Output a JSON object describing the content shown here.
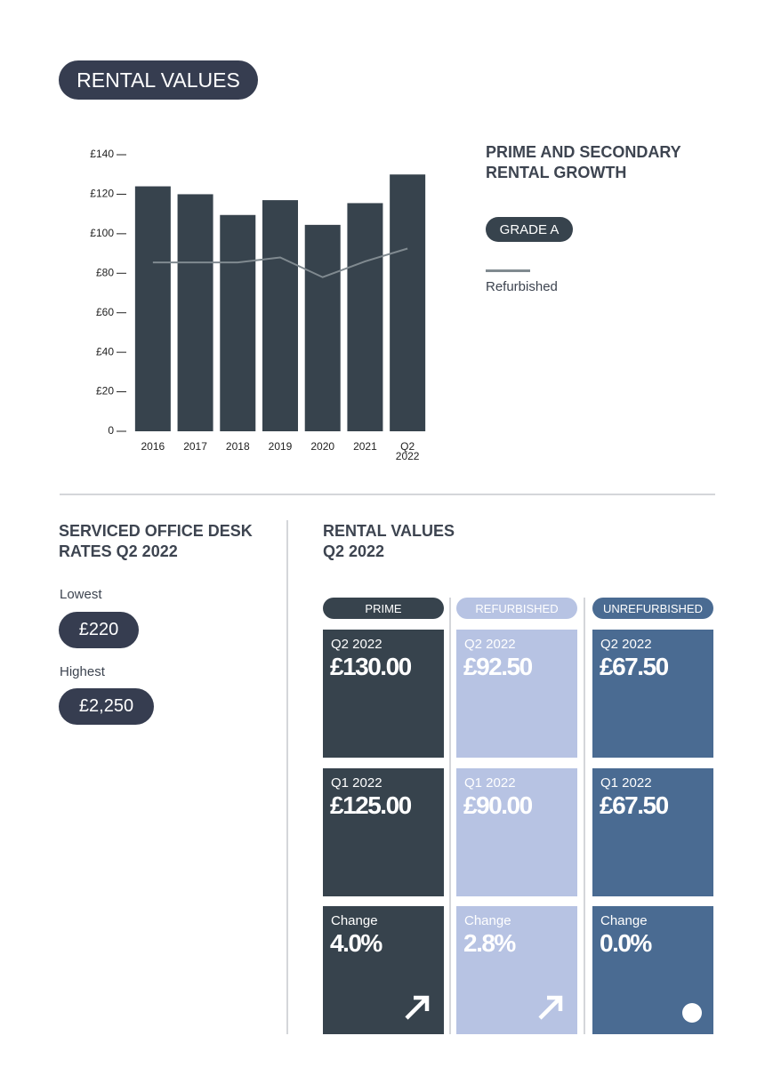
{
  "header": {
    "title": "RENTAL VALUES"
  },
  "chart_data": {
    "type": "bar",
    "title": "PRIME AND SECONDARY RENTAL GROWTH",
    "categories": [
      "2016",
      "2017",
      "2018",
      "2019",
      "2020",
      "2021",
      "Q2 2022"
    ],
    "series": [
      {
        "name": "GRADE A",
        "color": "#37434d",
        "type": "bar",
        "values": [
          124,
          120,
          109.5,
          117,
          104.5,
          115.5,
          130
        ]
      },
      {
        "name": "Refurbished",
        "color": "#808a90",
        "type": "line",
        "values": [
          85.5,
          85.5,
          85.5,
          88,
          78,
          86,
          92.5
        ]
      }
    ],
    "ylim": [
      0,
      140
    ],
    "yticks": [
      0,
      {
        "value": 20,
        "label": "£20"
      },
      {
        "value": 40,
        "label": "£40"
      },
      {
        "value": 60,
        "label": "£60"
      },
      {
        "value": 80,
        "label": "£80"
      },
      {
        "value": 100,
        "label": "£100"
      },
      {
        "value": 120,
        "label": "£120"
      },
      {
        "value": 140,
        "label": "£140"
      }
    ],
    "grid": false
  },
  "desk_rates": {
    "title": "SERVICED OFFICE DESK RATES Q2 2022",
    "items": [
      {
        "label": "Lowest",
        "value": "£220"
      },
      {
        "label": "Highest",
        "value": "£2,250"
      }
    ]
  },
  "rental_values": {
    "title": "RENTAL VALUES Q2 2022",
    "columns": [
      {
        "name": "PRIME",
        "cells": [
          {
            "label": "Q2 2022",
            "value": "£130.00"
          },
          {
            "label": "Q1 2022",
            "value": "£125.00"
          },
          {
            "label": "Change",
            "value": "4.0%"
          }
        ]
      },
      {
        "name": "REFURBISHED",
        "cells": [
          {
            "label": "Q2 2022",
            "value": "£92.50"
          },
          {
            "label": "Q1 2022",
            "value": "£90.00"
          },
          {
            "label": "Change",
            "value": "2.8%"
          }
        ]
      },
      {
        "name": "UNREFURBISHED",
        "cells": [
          {
            "label": "Q2 2022",
            "value": "£67.50"
          },
          {
            "label": "Q1 2022",
            "value": "£67.50"
          },
          {
            "label": "Change",
            "value": "0.0%"
          }
        ]
      }
    ]
  }
}
